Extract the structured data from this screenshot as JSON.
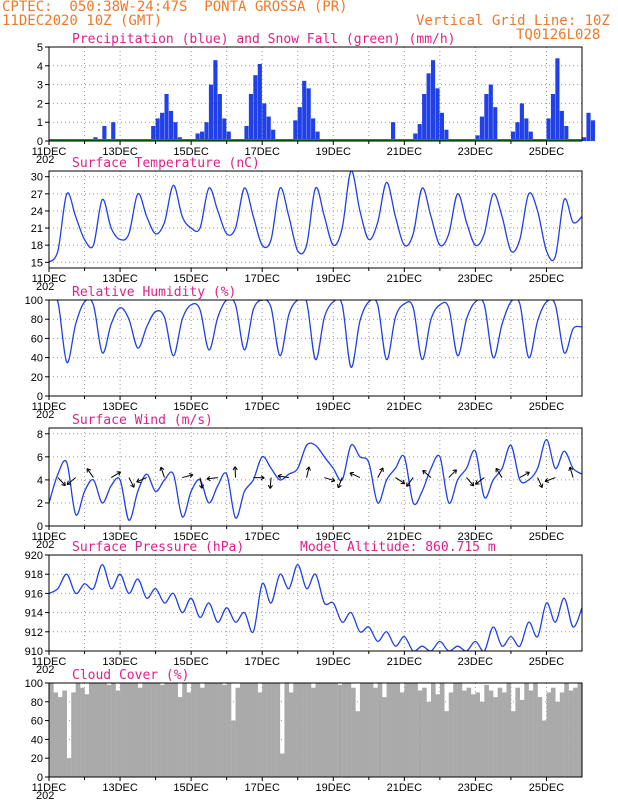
{
  "header": {
    "station": "CPTEC:  050:38W-24:47S  PONTA GROSSA (PR)",
    "init": "11DEC2020 10Z (GMT)",
    "grid_note": "Vertical Grid Line: 10Z",
    "run_code": "TQ0126L028"
  },
  "colors": {
    "header": "#f07828",
    "title": "#e0208a",
    "series": "#2040e8",
    "snow": "#00a000",
    "cloud": "#aaaaaa"
  },
  "x_axis": {
    "labels": [
      "11DEC",
      "13DEC",
      "15DEC",
      "17DEC",
      "19DEC",
      "21DEC",
      "23DEC",
      "25DEC"
    ],
    "label_days": [
      0,
      2,
      4,
      6,
      8,
      10,
      12,
      14
    ],
    "range_days": [
      0,
      15
    ],
    "cut_label": "202"
  },
  "chart_data": [
    {
      "id": "precip",
      "type": "bar",
      "title": "Precipitation (blue) and Snow Fall (green) (mm/h)",
      "ylim": [
        0,
        5
      ],
      "yticks": [
        0,
        1,
        2,
        3,
        4,
        5
      ],
      "step_hours": 3,
      "values": [
        0,
        0,
        0,
        0,
        0,
        0,
        0,
        0,
        0,
        0,
        0.2,
        0,
        0.8,
        0,
        1.0,
        0,
        0,
        0,
        0,
        0,
        0,
        0,
        0,
        0.8,
        1.2,
        1.5,
        2.5,
        1.6,
        1.0,
        0.2,
        0,
        0,
        0,
        0.4,
        0.5,
        1.0,
        3.0,
        4.3,
        2.5,
        1.2,
        0.5,
        0,
        0,
        0,
        0.8,
        2.5,
        3.5,
        4.1,
        2.0,
        1.3,
        0.6,
        0,
        0,
        0,
        0,
        1.1,
        1.8,
        3.2,
        2.8,
        1.2,
        0.5,
        0,
        0,
        0,
        0,
        0,
        0,
        0,
        0,
        0,
        0,
        0,
        0,
        0,
        0,
        0,
        0,
        1.0,
        0,
        0,
        0,
        0,
        0.4,
        0.9,
        2.5,
        3.6,
        4.3,
        2.8,
        1.5,
        0.6,
        0,
        0,
        0,
        0,
        0,
        0,
        0.3,
        1.3,
        2.5,
        3.0,
        1.8,
        0,
        0,
        0,
        0.5,
        1.0,
        2.0,
        1.2,
        0.5,
        0,
        0,
        0,
        1.2,
        2.5,
        4.4,
        1.6,
        0.8,
        0,
        0,
        0,
        0.2,
        1.5,
        1.1
      ]
    },
    {
      "id": "temperature",
      "type": "line",
      "title": "Surface Temperature (nC)",
      "ylim": [
        14,
        31
      ],
      "yticks": [
        15,
        18,
        21,
        24,
        27,
        30
      ],
      "x_days": [
        0,
        0.25,
        0.5,
        0.75,
        1,
        1.25,
        1.5,
        1.75,
        2,
        2.25,
        2.5,
        2.75,
        3,
        3.25,
        3.5,
        3.75,
        4,
        4.25,
        4.5,
        4.75,
        5,
        5.25,
        5.5,
        5.75,
        6,
        6.25,
        6.5,
        6.75,
        7,
        7.25,
        7.5,
        7.75,
        8,
        8.25,
        8.5,
        8.75,
        9,
        9.25,
        9.5,
        9.75,
        10,
        10.25,
        10.5,
        10.75,
        11,
        11.25,
        11.5,
        11.75,
        12,
        12.25,
        12.5,
        12.75,
        13,
        13.25,
        13.5,
        13.75,
        14,
        14.25,
        14.5,
        14.75,
        15
      ],
      "values": [
        15,
        17,
        27,
        23,
        19,
        18,
        26,
        21,
        19,
        20,
        27,
        23,
        20,
        22,
        28.5,
        23,
        21,
        21,
        28,
        24,
        20,
        21,
        28,
        23,
        18,
        19,
        28,
        23,
        17,
        18,
        28,
        23,
        18,
        21,
        31,
        24,
        19,
        22,
        29,
        23,
        18,
        20,
        28,
        23,
        18,
        20,
        27,
        22,
        18,
        20,
        27,
        23,
        17,
        19,
        27,
        24,
        17,
        16,
        26,
        22,
        23
      ]
    },
    {
      "id": "humidity",
      "type": "line",
      "title": "Relative Humidity (%)",
      "ylim": [
        0,
        100
      ],
      "yticks": [
        0,
        20,
        40,
        60,
        80,
        100
      ],
      "x_days": [
        0,
        0.25,
        0.5,
        0.75,
        1,
        1.25,
        1.5,
        1.75,
        2,
        2.25,
        2.5,
        2.75,
        3,
        3.25,
        3.5,
        3.75,
        4,
        4.25,
        4.5,
        4.75,
        5,
        5.25,
        5.5,
        5.75,
        6,
        6.25,
        6.5,
        6.75,
        7,
        7.25,
        7.5,
        7.75,
        8,
        8.25,
        8.5,
        8.75,
        9,
        9.25,
        9.5,
        9.75,
        10,
        10.25,
        10.5,
        10.75,
        11,
        11.25,
        11.5,
        11.75,
        12,
        12.25,
        12.5,
        12.75,
        13,
        13.25,
        13.5,
        13.75,
        14,
        14.25,
        14.5,
        14.75,
        15
      ],
      "values": [
        100,
        98,
        35,
        75,
        98,
        95,
        45,
        75,
        92,
        80,
        50,
        72,
        88,
        82,
        42,
        80,
        95,
        90,
        48,
        82,
        100,
        95,
        48,
        90,
        100,
        92,
        42,
        85,
        100,
        98,
        38,
        82,
        98,
        95,
        30,
        78,
        98,
        95,
        38,
        82,
        96,
        92,
        38,
        80,
        95,
        92,
        42,
        80,
        98,
        95,
        40,
        75,
        98,
        96,
        40,
        78,
        98,
        95,
        45,
        70,
        72
      ]
    },
    {
      "id": "wind",
      "type": "line",
      "title": "Surface Wind (m/s)",
      "ylim": [
        0,
        8.5
      ],
      "yticks": [
        0,
        2,
        4,
        6,
        8
      ],
      "x_days": [
        0,
        0.25,
        0.5,
        0.75,
        1,
        1.25,
        1.5,
        1.75,
        2,
        2.25,
        2.5,
        2.75,
        3,
        3.25,
        3.5,
        3.75,
        4,
        4.25,
        4.5,
        4.75,
        5,
        5.25,
        5.5,
        5.75,
        6,
        6.25,
        6.5,
        6.75,
        7,
        7.25,
        7.5,
        7.75,
        8,
        8.25,
        8.5,
        8.75,
        9,
        9.25,
        9.5,
        9.75,
        10,
        10.25,
        10.5,
        10.75,
        11,
        11.25,
        11.5,
        11.75,
        12,
        12.25,
        12.5,
        12.75,
        13,
        13.25,
        13.5,
        13.75,
        14,
        14.25,
        14.5,
        14.75,
        15
      ],
      "values": [
        2,
        4.5,
        5.5,
        1,
        3,
        4,
        2,
        3.5,
        4,
        0.5,
        3,
        4.5,
        3,
        4,
        4.5,
        0.8,
        3,
        4,
        2,
        3.5,
        4.5,
        0.7,
        3,
        4,
        6,
        5,
        4,
        4.5,
        5,
        7,
        7,
        6,
        5,
        4,
        7,
        6,
        5.5,
        2,
        4,
        5,
        6,
        2,
        3,
        5,
        6,
        2,
        4,
        5,
        6.5,
        2.5,
        4,
        5,
        7,
        4,
        4,
        5,
        7.5,
        5,
        6.5,
        5,
        4.5
      ]
    },
    {
      "id": "pressure",
      "type": "line",
      "title": "Surface Pressure (hPa)",
      "model_altitude": "Model Altitude: 860.715 m",
      "ylim": [
        910,
        920
      ],
      "yticks": [
        910,
        912,
        914,
        916,
        918,
        920
      ],
      "x_days": [
        0,
        0.25,
        0.5,
        0.75,
        1,
        1.25,
        1.5,
        1.75,
        2,
        2.25,
        2.5,
        2.75,
        3,
        3.25,
        3.5,
        3.75,
        4,
        4.25,
        4.5,
        4.75,
        5,
        5.25,
        5.5,
        5.75,
        6,
        6.25,
        6.5,
        6.75,
        7,
        7.25,
        7.5,
        7.75,
        8,
        8.25,
        8.5,
        8.75,
        9,
        9.25,
        9.5,
        9.75,
        10,
        10.25,
        10.5,
        10.75,
        11,
        11.25,
        11.5,
        11.75,
        12,
        12.25,
        12.5,
        12.75,
        13,
        13.25,
        13.5,
        13.75,
        14,
        14.25,
        14.5,
        14.75,
        15
      ],
      "values": [
        916,
        916.5,
        918,
        916,
        917,
        916.5,
        919,
        916.5,
        918,
        916,
        917.5,
        915.5,
        916.5,
        915,
        916,
        914,
        915.5,
        913.5,
        915,
        913,
        914.5,
        913,
        914,
        912,
        917,
        915,
        918,
        916.5,
        919,
        916.5,
        918,
        915,
        915,
        913,
        914,
        912,
        912.5,
        911,
        912,
        910.5,
        911.5,
        910,
        910.5,
        909.5,
        911,
        909.5,
        910.5,
        909.5,
        911,
        910,
        912.5,
        910.5,
        911.5,
        910.5,
        913,
        911.5,
        915,
        913,
        915.5,
        912.5,
        914.5
      ]
    },
    {
      "id": "cloud",
      "type": "bar",
      "title": "Cloud Cover (%)",
      "ylim": [
        0,
        100
      ],
      "yticks": [
        0,
        20,
        40,
        60,
        80,
        100
      ],
      "step_hours": 3,
      "values": [
        100,
        90,
        85,
        92,
        20,
        90,
        100,
        95,
        88,
        100,
        100,
        100,
        100,
        98,
        100,
        92,
        100,
        100,
        100,
        100,
        95,
        100,
        100,
        100,
        100,
        98,
        100,
        100,
        100,
        85,
        100,
        90,
        100,
        100,
        95,
        100,
        100,
        100,
        100,
        98,
        100,
        60,
        95,
        100,
        100,
        100,
        100,
        90,
        100,
        100,
        100,
        100,
        25,
        100,
        90,
        100,
        100,
        100,
        100,
        95,
        100,
        100,
        100,
        100,
        100,
        98,
        100,
        100,
        95,
        70,
        100,
        100,
        100,
        95,
        100,
        85,
        100,
        100,
        100,
        90,
        100,
        100,
        100,
        92,
        95,
        80,
        100,
        88,
        100,
        70,
        90,
        100,
        100,
        92,
        95,
        88,
        90,
        80,
        98,
        92,
        85,
        95,
        90,
        100,
        70,
        95,
        82,
        100,
        92,
        100,
        85,
        60,
        90,
        95,
        80,
        90,
        100,
        92,
        95,
        100
      ]
    }
  ]
}
